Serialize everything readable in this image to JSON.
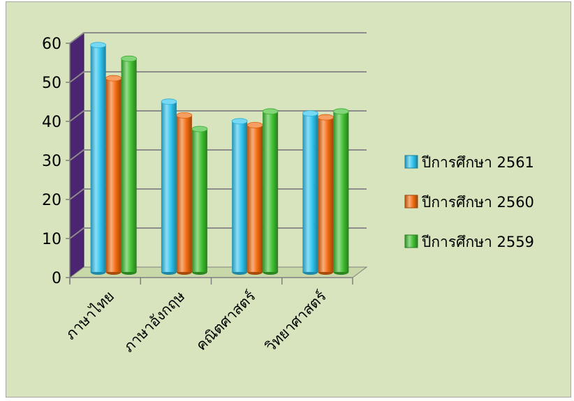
{
  "chart_data": {
    "type": "bar",
    "title": "",
    "xlabel": "",
    "ylabel": "",
    "categories": [
      "ภาษาไทย",
      "ภาษาอังกฤษ",
      "คณิตศาสตร์",
      "วิทยาศาสตร์"
    ],
    "series": [
      {
        "name": "ปีการศึกษา 2561",
        "values": [
          59,
          44.5,
          39.5,
          41.5
        ],
        "color": "#2dc3ee"
      },
      {
        "name": "ปีการศึกษา 2560",
        "values": [
          50.5,
          41,
          38.5,
          40.5
        ],
        "color": "#f26b0f"
      },
      {
        "name": "ปีการศึกษา 2559",
        "values": [
          55.5,
          37.5,
          42,
          42
        ],
        "color": "#3fbf30"
      }
    ],
    "yticks": [
      0,
      10,
      20,
      30,
      40,
      50,
      60
    ],
    "ylim": [
      0,
      60
    ],
    "grid": true,
    "legend_position": "right",
    "back_wall_color": "#4b2472"
  }
}
